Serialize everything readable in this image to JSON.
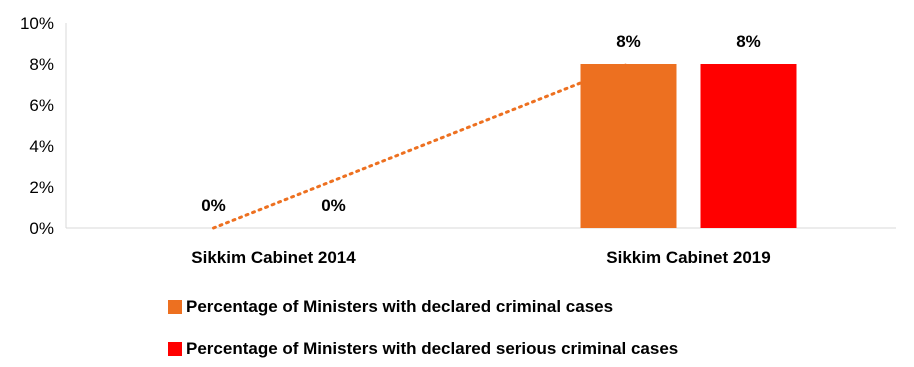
{
  "chart_data": {
    "type": "bar",
    "categories": [
      "Sikkim  Cabinet 2014",
      "Sikkim  Cabinet 2019"
    ],
    "series": [
      {
        "name": "Percentage  of Ministers with declared criminal cases",
        "values": [
          0,
          8
        ],
        "labels": [
          "0%",
          "8%"
        ],
        "color": "#ED7020"
      },
      {
        "name": "Percentage of Ministers with declared serious criminal cases",
        "values": [
          0,
          8
        ],
        "labels": [
          "0%",
          "8%"
        ],
        "color": "#FF0000"
      }
    ],
    "ylim": [
      0,
      10
    ],
    "yticks": [
      "0%",
      "2%",
      "4%",
      "6%",
      "8%",
      "10%"
    ],
    "trendline": {
      "series": 0,
      "style": "dotted",
      "color": "#ED7020"
    },
    "grid": false,
    "legend": "bottom"
  }
}
